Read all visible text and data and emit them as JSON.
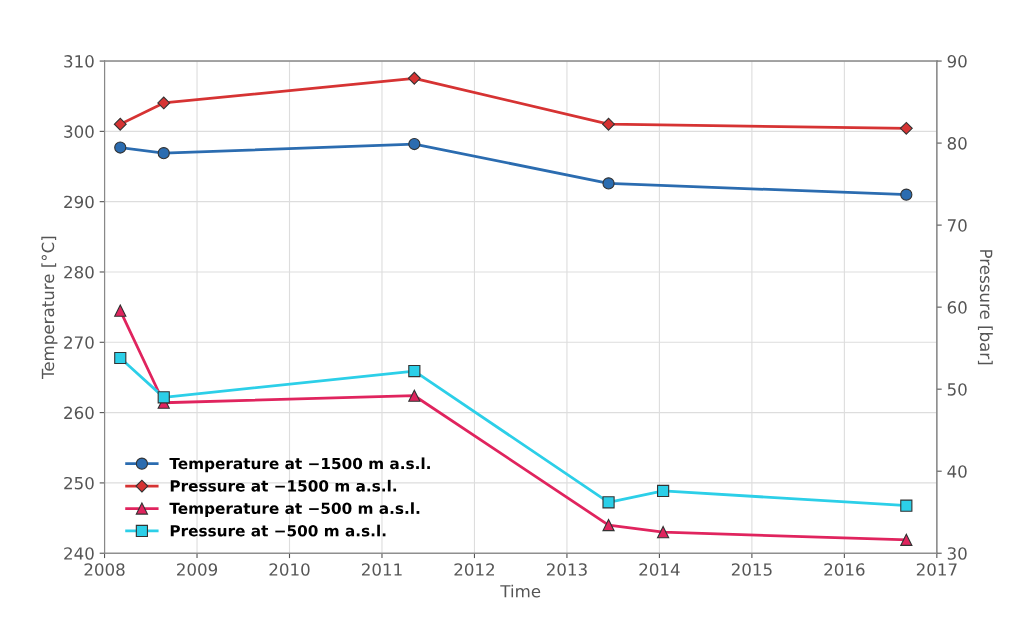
{
  "chart_data": {
    "type": "line",
    "xlabel": "Time",
    "ylabel": "Temperature [°C]",
    "y2label": "Pressure [bar]",
    "xlim": [
      2008,
      2017
    ],
    "xticks": [
      2008,
      2009,
      2010,
      2011,
      2012,
      2013,
      2014,
      2015,
      2016,
      2017
    ],
    "ylim": [
      240,
      310
    ],
    "yticks": [
      240,
      250,
      260,
      270,
      280,
      290,
      300,
      310
    ],
    "y2lim": [
      30,
      90
    ],
    "y2ticks": [
      30,
      40,
      50,
      60,
      70,
      80,
      90
    ],
    "grid": true,
    "legend": "bottom left",
    "series": [
      {
        "name": "Temperature at −1500 m a.s.l.",
        "color": "#2b6cb0",
        "marker": "circle",
        "x": [
          2008.17,
          2008.64,
          2011.35,
          2013.45,
          2016.67
        ],
        "values": [
          297.7,
          296.9,
          298.2,
          292.6,
          291.0
        ]
      },
      {
        "name": "Pressure at −1500 m a.s.l.",
        "color": "#d63333",
        "marker": "diamond",
        "axis": "y2",
        "x": [
          2008.17,
          2008.64,
          2011.35,
          2013.45,
          2016.67
        ],
        "values": [
          82.3,
          84.9,
          87.9,
          82.3,
          81.8
        ]
      },
      {
        "name": "Temperature at −500 m a.s.l.",
        "color": "#e0245e",
        "marker": "triangle",
        "x": [
          2008.17,
          2008.64,
          2011.35,
          2013.45,
          2014.04,
          2016.67
        ],
        "values": [
          274.5,
          261.4,
          262.4,
          244.0,
          243.0,
          241.9
        ]
      },
      {
        "name": "Pressure at −500 m a.s.l.",
        "color": "#2ccfe8",
        "marker": "square",
        "axis": "y2",
        "x": [
          2008.17,
          2008.64,
          2011.35,
          2013.45,
          2014.04,
          2016.67
        ],
        "values": [
          53.8,
          49.0,
          52.2,
          36.2,
          37.6,
          35.8
        ]
      }
    ]
  }
}
